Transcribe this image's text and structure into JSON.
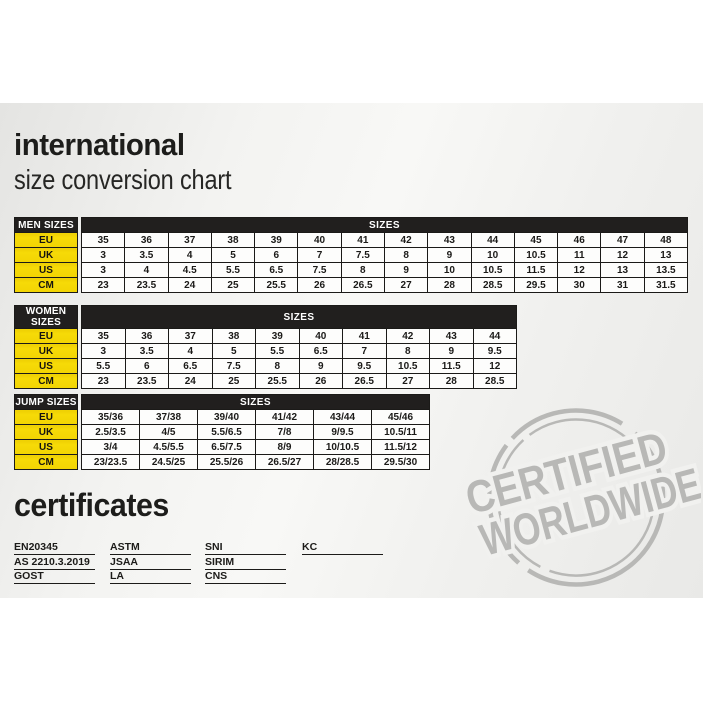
{
  "title": {
    "heading": "international",
    "subheading": "size conversion chart"
  },
  "tables": [
    {
      "name": "MEN SIZES",
      "sizes_label": "SIZES",
      "rows": [
        {
          "label": "EU",
          "values": [
            "35",
            "36",
            "37",
            "38",
            "39",
            "40",
            "41",
            "42",
            "43",
            "44",
            "45",
            "46",
            "47",
            "48"
          ]
        },
        {
          "label": "UK",
          "values": [
            "3",
            "3.5",
            "4",
            "5",
            "6",
            "7",
            "7.5",
            "8",
            "9",
            "10",
            "10.5",
            "11",
            "12",
            "13"
          ]
        },
        {
          "label": "US",
          "values": [
            "3",
            "4",
            "4.5",
            "5.5",
            "6.5",
            "7.5",
            "8",
            "9",
            "10",
            "10.5",
            "11.5",
            "12",
            "13",
            "13.5"
          ]
        },
        {
          "label": "CM",
          "values": [
            "23",
            "23.5",
            "24",
            "25",
            "25.5",
            "26",
            "26.5",
            "27",
            "28",
            "28.5",
            "29.5",
            "30",
            "31",
            "31.5"
          ]
        }
      ]
    },
    {
      "name": "WOMEN SIZES",
      "sizes_label": "SIZES",
      "rows": [
        {
          "label": "EU",
          "values": [
            "35",
            "36",
            "37",
            "38",
            "39",
            "40",
            "41",
            "42",
            "43",
            "44"
          ]
        },
        {
          "label": "UK",
          "values": [
            "3",
            "3.5",
            "4",
            "5",
            "5.5",
            "6.5",
            "7",
            "8",
            "9",
            "9.5"
          ]
        },
        {
          "label": "US",
          "values": [
            "5.5",
            "6",
            "6.5",
            "7.5",
            "8",
            "9",
            "9.5",
            "10.5",
            "11.5",
            "12"
          ]
        },
        {
          "label": "CM",
          "values": [
            "23",
            "23.5",
            "24",
            "25",
            "25.5",
            "26",
            "26.5",
            "27",
            "28",
            "28.5"
          ]
        }
      ]
    },
    {
      "name": "JUMP SIZES",
      "sizes_label": "SIZES",
      "rows": [
        {
          "label": "EU",
          "values": [
            "35/36",
            "37/38",
            "39/40",
            "41/42",
            "43/44",
            "45/46"
          ]
        },
        {
          "label": "UK",
          "values": [
            "2.5/3.5",
            "4/5",
            "5.5/6.5",
            "7/8",
            "9/9.5",
            "10.5/11"
          ]
        },
        {
          "label": "US",
          "values": [
            "3/4",
            "4.5/5.5",
            "6.5/7.5",
            "8/9",
            "10/10.5",
            "11.5/12"
          ]
        },
        {
          "label": "CM",
          "values": [
            "23/23.5",
            "24.5/25",
            "25.5/26",
            "26.5/27",
            "28/28.5",
            "29.5/30"
          ]
        }
      ]
    }
  ],
  "certificates": {
    "heading": "certificates",
    "columns": [
      [
        "EN20345",
        "AS 2210.3.2019",
        "GOST"
      ],
      [
        "ASTM",
        "JSAA",
        "LA"
      ],
      [
        "SNI",
        "SIRIM",
        "CNS"
      ],
      [
        "KC"
      ]
    ]
  },
  "stamp": {
    "line1": "CERTIFIED",
    "line2": "WORLDWIDE"
  },
  "colors": {
    "accent_yellow": "#f2d403",
    "header_black": "#211f1e",
    "cell_text": "#1b1a18",
    "stamp_gray": "#b8b8b6",
    "paper": "#f1f1ef"
  }
}
